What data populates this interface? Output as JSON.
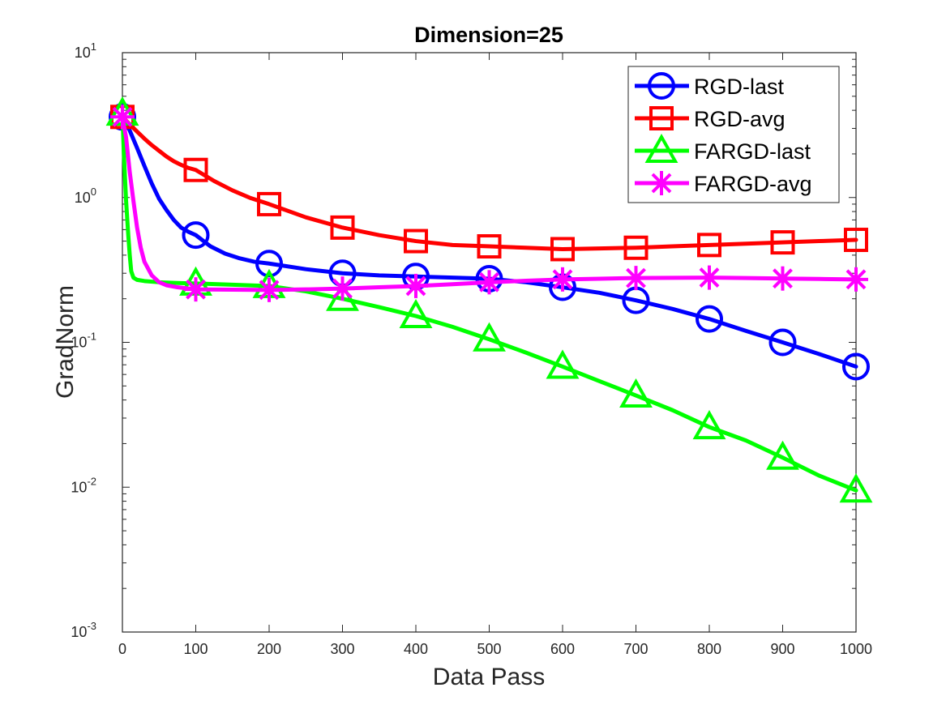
{
  "chart_data": {
    "type": "line",
    "title": "Dimension=25",
    "xlabel": "Data Pass",
    "ylabel": "GradNorm",
    "xlim": [
      0,
      1000
    ],
    "ylim": [
      0.001,
      10
    ],
    "yscale": "log",
    "xticks": [
      0,
      100,
      200,
      300,
      400,
      500,
      600,
      700,
      800,
      900,
      1000
    ],
    "yticks": [
      {
        "value": 0.001,
        "base": "10",
        "exp": "-3"
      },
      {
        "value": 0.01,
        "base": "10",
        "exp": "-2"
      },
      {
        "value": 0.1,
        "base": "10",
        "exp": "-1"
      },
      {
        "value": 1,
        "base": "10",
        "exp": "0"
      },
      {
        "value": 10,
        "base": "10",
        "exp": "1"
      }
    ],
    "legend_position": "top-right",
    "series": [
      {
        "name": "RGD-last",
        "color": "#0000ff",
        "marker": "circle",
        "markers": {
          "x": [
            0,
            100,
            200,
            300,
            400,
            500,
            600,
            700,
            800,
            900,
            1000
          ],
          "y": [
            3.6,
            0.55,
            0.35,
            0.3,
            0.285,
            0.275,
            0.24,
            0.195,
            0.145,
            0.1,
            0.068
          ]
        },
        "line": {
          "x": [
            0,
            5,
            10,
            20,
            30,
            40,
            50,
            60,
            70,
            80,
            90,
            100,
            120,
            140,
            160,
            180,
            200,
            250,
            300,
            350,
            400,
            450,
            500,
            550,
            600,
            650,
            700,
            750,
            800,
            850,
            900,
            950,
            1000
          ],
          "y": [
            3.6,
            3.3,
            2.9,
            2.2,
            1.65,
            1.25,
            0.98,
            0.82,
            0.7,
            0.62,
            0.58,
            0.55,
            0.46,
            0.41,
            0.38,
            0.36,
            0.35,
            0.32,
            0.3,
            0.29,
            0.285,
            0.28,
            0.275,
            0.26,
            0.24,
            0.22,
            0.195,
            0.17,
            0.145,
            0.12,
            0.1,
            0.083,
            0.068
          ]
        }
      },
      {
        "name": "RGD-avg",
        "color": "#ff0000",
        "marker": "square",
        "markers": {
          "x": [
            0,
            100,
            200,
            300,
            400,
            500,
            600,
            700,
            800,
            900,
            1000
          ],
          "y": [
            3.6,
            1.55,
            0.9,
            0.62,
            0.5,
            0.46,
            0.44,
            0.45,
            0.47,
            0.49,
            0.51
          ]
        },
        "line": {
          "x": [
            0,
            10,
            20,
            30,
            40,
            50,
            60,
            70,
            80,
            90,
            100,
            125,
            150,
            175,
            200,
            250,
            300,
            350,
            400,
            450,
            500,
            550,
            600,
            650,
            700,
            750,
            800,
            850,
            900,
            950,
            1000
          ],
          "y": [
            3.6,
            3.2,
            2.85,
            2.55,
            2.3,
            2.1,
            1.92,
            1.78,
            1.68,
            1.6,
            1.55,
            1.3,
            1.12,
            0.99,
            0.9,
            0.73,
            0.62,
            0.55,
            0.5,
            0.47,
            0.46,
            0.45,
            0.44,
            0.445,
            0.45,
            0.46,
            0.47,
            0.48,
            0.49,
            0.5,
            0.51
          ]
        }
      },
      {
        "name": "FARGD-last",
        "color": "#00ff00",
        "marker": "triangle",
        "markers": {
          "x": [
            0,
            100,
            200,
            300,
            400,
            500,
            600,
            700,
            800,
            900,
            1000
          ],
          "y": [
            3.8,
            0.255,
            0.245,
            0.2,
            0.152,
            0.105,
            0.068,
            0.043,
            0.026,
            0.016,
            0.0095
          ]
        },
        "line": {
          "x": [
            0,
            2,
            5,
            8,
            10,
            12,
            15,
            20,
            30,
            50,
            75,
            100,
            150,
            200,
            250,
            300,
            350,
            400,
            450,
            500,
            550,
            600,
            650,
            700,
            750,
            800,
            850,
            900,
            950,
            1000
          ],
          "y": [
            3.8,
            2.0,
            0.95,
            0.55,
            0.4,
            0.31,
            0.28,
            0.27,
            0.265,
            0.26,
            0.257,
            0.255,
            0.25,
            0.245,
            0.225,
            0.2,
            0.175,
            0.152,
            0.128,
            0.105,
            0.085,
            0.068,
            0.054,
            0.043,
            0.034,
            0.026,
            0.021,
            0.016,
            0.012,
            0.0095
          ]
        }
      },
      {
        "name": "FARGD-avg",
        "color": "#ff00ff",
        "marker": "asterisk",
        "markers": {
          "x": [
            0,
            100,
            200,
            300,
            400,
            500,
            600,
            700,
            800,
            900,
            1000
          ],
          "y": [
            3.6,
            0.232,
            0.23,
            0.235,
            0.245,
            0.26,
            0.272,
            0.278,
            0.28,
            0.276,
            0.272
          ]
        },
        "line": {
          "x": [
            0,
            5,
            10,
            15,
            20,
            25,
            30,
            40,
            50,
            60,
            75,
            100,
            150,
            200,
            250,
            300,
            350,
            400,
            450,
            500,
            550,
            600,
            650,
            700,
            750,
            800,
            850,
            900,
            950,
            1000
          ],
          "y": [
            3.6,
            2.6,
            1.5,
            0.95,
            0.62,
            0.45,
            0.36,
            0.29,
            0.26,
            0.248,
            0.24,
            0.232,
            0.231,
            0.23,
            0.232,
            0.235,
            0.24,
            0.245,
            0.252,
            0.26,
            0.266,
            0.272,
            0.275,
            0.278,
            0.279,
            0.28,
            0.278,
            0.276,
            0.274,
            0.272
          ]
        }
      }
    ]
  }
}
